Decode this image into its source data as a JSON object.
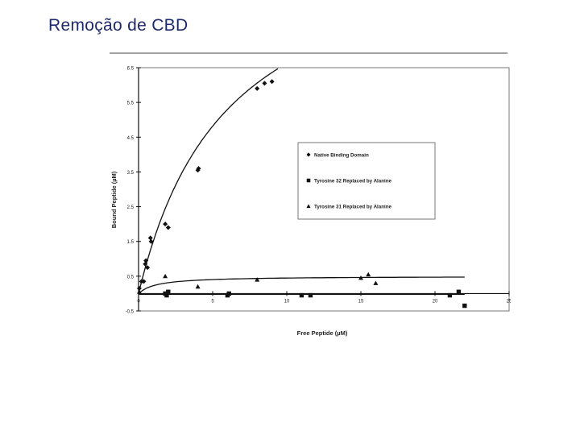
{
  "slide": {
    "title": "Remoção de CBD"
  },
  "chart_data": {
    "type": "scatter",
    "title": "",
    "xlabel": "Free Peptide (µM)",
    "ylabel": "Bound Peptide (µM)",
    "xlim": [
      0,
      25
    ],
    "ylim": [
      -0.5,
      6.5
    ],
    "xticks": [
      0,
      5,
      10,
      15,
      20,
      25
    ],
    "xtick_labels": [
      "0",
      "5",
      "10",
      "15",
      "20",
      "25"
    ],
    "yticks": [
      -0.5,
      0.5,
      1.5,
      2.5,
      3.5,
      4.5,
      5.5,
      6.5
    ],
    "ytick_labels": [
      "-0.5",
      "0.5",
      "1.5",
      "2.5",
      "3.5",
      "4.5",
      "5.5",
      "6.5"
    ],
    "legend_position": "right",
    "series": [
      {
        "name": "Native Binding Domain",
        "marker": "diamond",
        "color": "#111111",
        "points": [
          [
            0.05,
            0.15
          ],
          [
            0.2,
            0.35
          ],
          [
            0.35,
            0.35
          ],
          [
            0.45,
            0.85
          ],
          [
            0.5,
            0.95
          ],
          [
            0.6,
            0.75
          ],
          [
            0.8,
            1.6
          ],
          [
            0.85,
            1.5
          ],
          [
            1.8,
            2.0
          ],
          [
            2.0,
            1.9
          ],
          [
            4.0,
            3.55
          ],
          [
            4.05,
            3.6
          ],
          [
            8.0,
            5.9
          ],
          [
            8.5,
            6.05
          ],
          [
            9.0,
            6.1
          ]
        ],
        "fit_curve": {
          "type": "saturation",
          "bmax": 10.6,
          "kd": 6.0
        }
      },
      {
        "name": "Tyrosine 32 Replaced by Alanine",
        "marker": "square",
        "color": "#111111",
        "points": [
          [
            1.8,
            0.0
          ],
          [
            1.9,
            -0.05
          ],
          [
            2.0,
            0.05
          ],
          [
            6.0,
            -0.05
          ],
          [
            6.1,
            0.0
          ],
          [
            11.0,
            -0.05
          ],
          [
            11.6,
            -0.05
          ],
          [
            21.0,
            -0.05
          ],
          [
            21.6,
            0.05
          ],
          [
            22.0,
            -0.35
          ]
        ],
        "fit_curve": {
          "type": "line",
          "from": [
            0,
            -0.02
          ],
          "to": [
            22,
            -0.02
          ]
        }
      },
      {
        "name": "Tyrosine 31 Replaced by Alanine",
        "marker": "triangle",
        "color": "#111111",
        "points": [
          [
            0.05,
            0.05
          ],
          [
            1.8,
            0.5
          ],
          [
            4.0,
            0.2
          ],
          [
            8.0,
            0.4
          ],
          [
            15.0,
            0.45
          ],
          [
            15.5,
            0.55
          ],
          [
            16.0,
            0.3
          ]
        ],
        "fit_curve": {
          "type": "saturation",
          "bmax": 0.5,
          "kd": 1.2
        }
      }
    ]
  }
}
